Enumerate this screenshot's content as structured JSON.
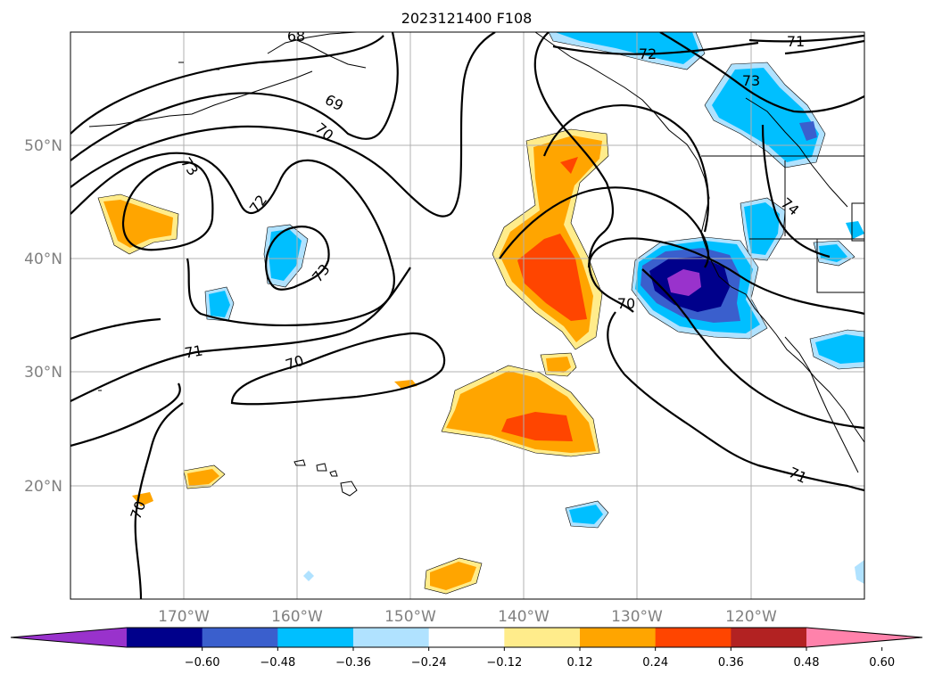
{
  "title": "2023121400 F108",
  "latitude_labels": [
    "50°N",
    "40°N",
    "30°N",
    "20°N"
  ],
  "longitude_labels": [
    "170°W",
    "160°W",
    "150°W",
    "140°W",
    "130°W",
    "120°W"
  ],
  "colorbar": {
    "ticks": [
      "−0.60",
      "−0.48",
      "−0.36",
      "−0.24",
      "−0.12",
      "0.12",
      "0.24",
      "0.36",
      "0.48",
      "0.60"
    ],
    "colors": [
      "#9932cc",
      "#00008b",
      "#3a5fcd",
      "#00bfff",
      "#b0e2ff",
      "#ffffff",
      "#ffec8b",
      "#ffa500",
      "#ff4500",
      "#b22222",
      "#ff82ab"
    ]
  },
  "contour_labels": [
    {
      "text": "68"
    },
    {
      "text": "69"
    },
    {
      "text": "70"
    },
    {
      "text": "73"
    },
    {
      "text": "72"
    },
    {
      "text": "73"
    },
    {
      "text": "71"
    },
    {
      "text": "70"
    },
    {
      "text": "70"
    },
    {
      "text": "72"
    },
    {
      "text": "71"
    },
    {
      "text": "73"
    },
    {
      "text": "74"
    },
    {
      "text": "71"
    },
    {
      "text": "70"
    }
  ]
}
